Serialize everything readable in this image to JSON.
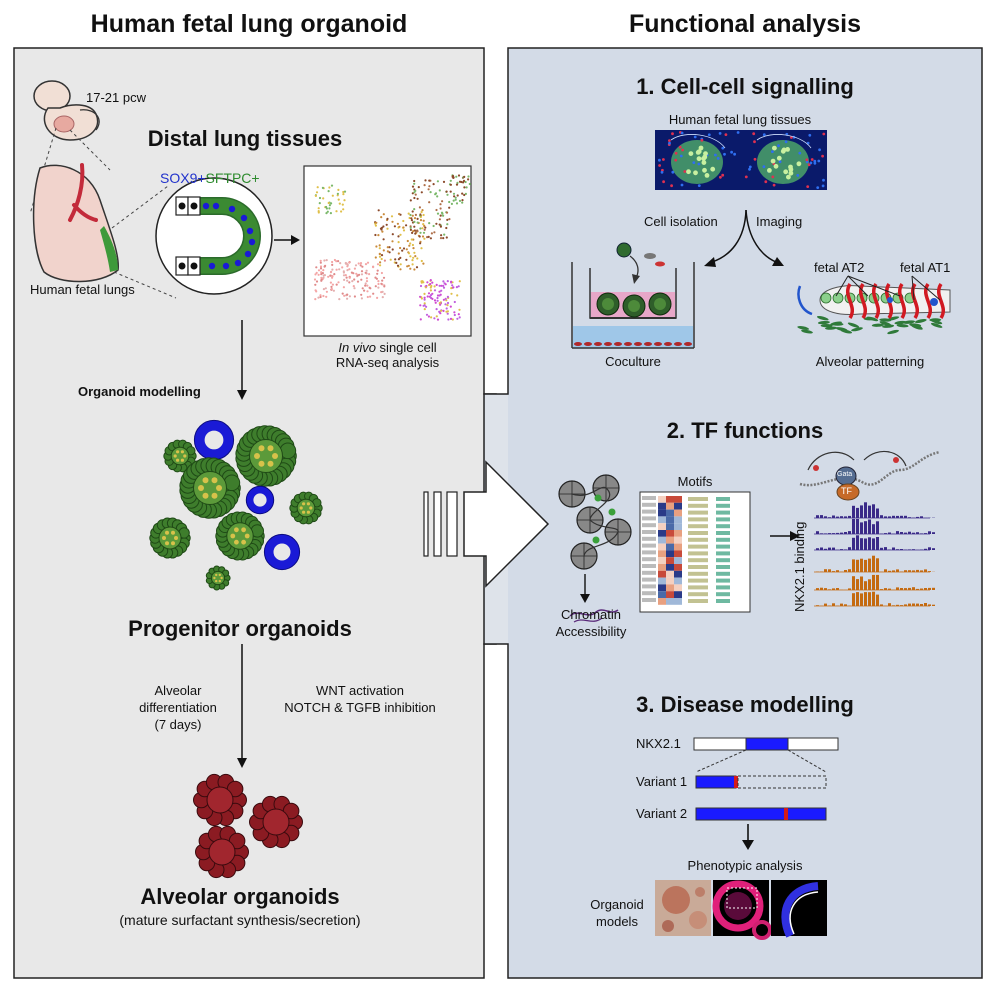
{
  "headers": {
    "left": "Human fetal lung organoid",
    "right": "Functional analysis"
  },
  "left": {
    "age": "17-21 pcw",
    "distal_title": "Distal lung tissues",
    "markers": {
      "sox9": "SOX9+",
      "sftpc": "SFTPC+"
    },
    "fetal_lungs": "Human fetal lungs",
    "scrna_italic": "In vivo",
    "scrna_rest": " single cell",
    "scrna_line2": "RNA-seq analysis",
    "organoid_modelling": "Organoid modelling",
    "progenitor_title": "Progenitor organoids",
    "diff_line1": "Alveolar",
    "diff_line2": "differentiation",
    "diff_line3": "(7 days)",
    "signal_line1": "WNT activation",
    "signal_line2": "NOTCH & TGFB inhibition",
    "alveolar_title": "Alveolar organoids",
    "alveolar_sub": "(mature surfactant synthesis/secretion)"
  },
  "right": {
    "s1": {
      "title": "1. Cell-cell signalling",
      "tissues": "Human fetal lung tissues",
      "isolation": "Cell isolation",
      "imaging": "Imaging",
      "at2": "fetal AT2",
      "at1": "fetal AT1",
      "coculture": "Coculture",
      "patterning": "Alveolar patterning"
    },
    "s2": {
      "title": "2. TF functions",
      "motifs": "Motifs",
      "chromatin1": "Chromatin",
      "chromatin2": "Accessibility",
      "binding": "NKX2.1 binding",
      "tf": "TF",
      "gene": "Gata"
    },
    "s3": {
      "title": "3. Disease modelling",
      "nkx": "NKX2.1",
      "v1": "Variant 1",
      "v2": "Variant 2",
      "phenotypic": "Phenotypic analysis",
      "models1": "Organoid",
      "models2": "models"
    }
  },
  "colors": {
    "left_panel": "#e8e8e8",
    "right_panel": "#d3dbe7",
    "organoid_green": "#3e7d2c",
    "organoid_blue": "#1a1ad6",
    "alveolar_red": "#8b1b22",
    "marker_blue": "#2233cc",
    "marker_green": "#2e8b2e",
    "variant_blue": "#1a1aff",
    "variant_red": "#d61a1a"
  },
  "icons": [
    "embryo-icon",
    "lung-icon",
    "crypt-icon",
    "umap-plot",
    "transwell-icon",
    "alveolus-icon",
    "chromatin-icon",
    "heatmap-icon",
    "track-plot",
    "big-arrow-icon"
  ]
}
